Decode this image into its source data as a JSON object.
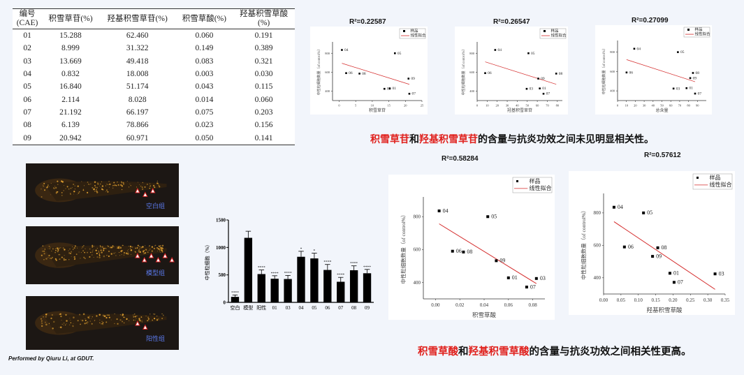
{
  "table": {
    "headers": [
      "编号\n(CAE)",
      "积雪草苷(%)",
      "羟基积雪草苷(%)",
      "积雪草酸(%)",
      "羟基积雪草酸\n(%)"
    ],
    "rows": [
      [
        "01",
        "15.288",
        "62.460",
        "0.060",
        "0.191"
      ],
      [
        "02",
        "8.999",
        "31.322",
        "0.149",
        "0.389"
      ],
      [
        "03",
        "13.669",
        "49.418",
        "0.083",
        "0.321"
      ],
      [
        "04",
        "0.832",
        "18.008",
        "0.003",
        "0.030"
      ],
      [
        "05",
        "16.840",
        "51.174",
        "0.043",
        "0.115"
      ],
      [
        "06",
        "2.114",
        "8.028",
        "0.014",
        "0.060"
      ],
      [
        "07",
        "21.192",
        "66.197",
        "0.075",
        "0.203"
      ],
      [
        "08",
        "6.139",
        "78.866",
        "0.023",
        "0.156"
      ],
      [
        "09",
        "20.942",
        "60.971",
        "0.050",
        "0.141"
      ]
    ]
  },
  "legend": {
    "sample": "样品",
    "fit": "线性拟合"
  },
  "colors": {
    "fit": "#d42a2a",
    "accent": "#e0201c",
    "fish_bg": "#1c1714",
    "fish_dot": "#e0a030"
  },
  "chart_data": [
    {
      "type": "scatter",
      "title": "R²=0.22587",
      "xlabel": "积雪草苷",
      "ylabel": "中性粒细胞数量（of control%）",
      "xlim": [
        -2,
        25
      ],
      "xticks": [
        0,
        5,
        10,
        15,
        20,
        25
      ],
      "ylim": [
        300,
        920
      ],
      "yticks": [
        400,
        600,
        800
      ],
      "points": [
        {
          "label": "04",
          "x": 0.832,
          "y": 835
        },
        {
          "label": "05",
          "x": 16.84,
          "y": 800
        },
        {
          "label": "06",
          "x": 2.114,
          "y": 590
        },
        {
          "label": "08",
          "x": 6.139,
          "y": 585
        },
        {
          "label": "09",
          "x": 20.942,
          "y": 532
        },
        {
          "label": "01",
          "x": 15.288,
          "y": 428
        },
        {
          "label": "03",
          "x": 13.669,
          "y": 424
        },
        {
          "label": "07",
          "x": 21.192,
          "y": 372
        }
      ]
    },
    {
      "type": "scatter",
      "title": "R²=0.26547",
      "xlabel": "羟基积雪草苷",
      "ylabel": "中性粒细胞数量（of control%）",
      "xlim": [
        0,
        85
      ],
      "xticks": [
        0,
        10,
        20,
        30,
        40,
        50,
        60,
        70,
        80
      ],
      "ylim": [
        300,
        920
      ],
      "yticks": [
        400,
        600,
        800
      ],
      "points": [
        {
          "label": "04",
          "x": 18.008,
          "y": 835
        },
        {
          "label": "05",
          "x": 51.174,
          "y": 800
        },
        {
          "label": "06",
          "x": 8.028,
          "y": 590
        },
        {
          "label": "08",
          "x": 78.866,
          "y": 585
        },
        {
          "label": "09",
          "x": 60.971,
          "y": 532
        },
        {
          "label": "01",
          "x": 62.46,
          "y": 428
        },
        {
          "label": "03",
          "x": 49.418,
          "y": 424
        },
        {
          "label": "07",
          "x": 66.197,
          "y": 372
        }
      ]
    },
    {
      "type": "scatter",
      "title": "R²=0.27099",
      "xlabel": "总含量",
      "ylabel": "中性粒细胞数量（of control%）",
      "xlim": [
        0,
        100
      ],
      "xticks": [
        0,
        10,
        20,
        30,
        40,
        50,
        60,
        70,
        80,
        90
      ],
      "ylim": [
        300,
        920
      ],
      "yticks": [
        400,
        600,
        800
      ],
      "points": [
        {
          "label": "04",
          "x": 18.84,
          "y": 835
        },
        {
          "label": "05",
          "x": 68.014,
          "y": 800
        },
        {
          "label": "06",
          "x": 10.142,
          "y": 590
        },
        {
          "label": "08",
          "x": 85.005,
          "y": 585
        },
        {
          "label": "09",
          "x": 81.913,
          "y": 532
        },
        {
          "label": "01",
          "x": 77.748,
          "y": 428
        },
        {
          "label": "03",
          "x": 63.087,
          "y": 424
        },
        {
          "label": "07",
          "x": 87.389,
          "y": 372
        }
      ]
    },
    {
      "type": "scatter",
      "title": "R²=0.58284",
      "xlabel": "积雪草酸",
      "ylabel": "中性粒细胞数量（of control%）",
      "xlim": [
        -0.01,
        0.09
      ],
      "xticks": [
        0,
        0.02,
        0.04,
        0.06,
        0.08
      ],
      "ylim": [
        300,
        920
      ],
      "yticks": [
        400,
        600,
        800
      ],
      "points": [
        {
          "label": "04",
          "x": 0.003,
          "y": 835
        },
        {
          "label": "05",
          "x": 0.043,
          "y": 800
        },
        {
          "label": "06",
          "x": 0.014,
          "y": 590
        },
        {
          "label": "08",
          "x": 0.023,
          "y": 585
        },
        {
          "label": "09",
          "x": 0.05,
          "y": 532
        },
        {
          "label": "01",
          "x": 0.06,
          "y": 428
        },
        {
          "label": "03",
          "x": 0.083,
          "y": 424
        },
        {
          "label": "07",
          "x": 0.075,
          "y": 372
        }
      ]
    },
    {
      "type": "scatter",
      "title": "R²=0.57612",
      "xlabel": "羟基积雪草酸",
      "ylabel": "中性粒细胞数量（of control%）",
      "xlim": [
        0,
        0.35
      ],
      "xticks": [
        0,
        0.05,
        0.1,
        0.15,
        0.2,
        0.25,
        0.3,
        0.35
      ],
      "ylim": [
        300,
        920
      ],
      "yticks": [
        400,
        600,
        800
      ],
      "points": [
        {
          "label": "04",
          "x": 0.03,
          "y": 835
        },
        {
          "label": "05",
          "x": 0.115,
          "y": 800
        },
        {
          "label": "06",
          "x": 0.06,
          "y": 590
        },
        {
          "label": "08",
          "x": 0.156,
          "y": 585
        },
        {
          "label": "09",
          "x": 0.141,
          "y": 532
        },
        {
          "label": "01",
          "x": 0.191,
          "y": 428
        },
        {
          "label": "03",
          "x": 0.321,
          "y": 424
        },
        {
          "label": "07",
          "x": 0.203,
          "y": 372
        }
      ]
    },
    {
      "type": "bar",
      "ylabel": "中性粒细胞（%）",
      "ylim": [
        0,
        1500
      ],
      "yticks": [
        0,
        500,
        1000,
        1500
      ],
      "categories": [
        "空白",
        "模型",
        "阳性",
        "01",
        "03",
        "04",
        "05",
        "06",
        "07",
        "08",
        "09"
      ],
      "values": [
        100,
        1175,
        515,
        430,
        425,
        830,
        800,
        590,
        375,
        585,
        530
      ],
      "errors": [
        35,
        120,
        75,
        55,
        65,
        100,
        95,
        100,
        80,
        80,
        70
      ],
      "significance": [
        "****",
        "",
        "****",
        "****",
        "****",
        "*",
        "*",
        "****",
        "****",
        "****",
        "****"
      ]
    }
  ],
  "caption1": {
    "a": "积雪草苷",
    "b": "和",
    "c": "羟基积雪草苷",
    "d": "的含量与抗炎功效之间未见明显相关性。"
  },
  "caption2": {
    "a": "积雪草酸",
    "b": "和",
    "c": "羟基积雪草酸",
    "d": "的含量与抗炎功效之间相关性更高。"
  },
  "fish": [
    {
      "label": "空白组",
      "arrows": 3
    },
    {
      "label": "模型组",
      "arrows": 6
    },
    {
      "label": "阳性组",
      "arrows": 2
    }
  ],
  "credit": "Performed by Qiuru Li, at GDUT."
}
